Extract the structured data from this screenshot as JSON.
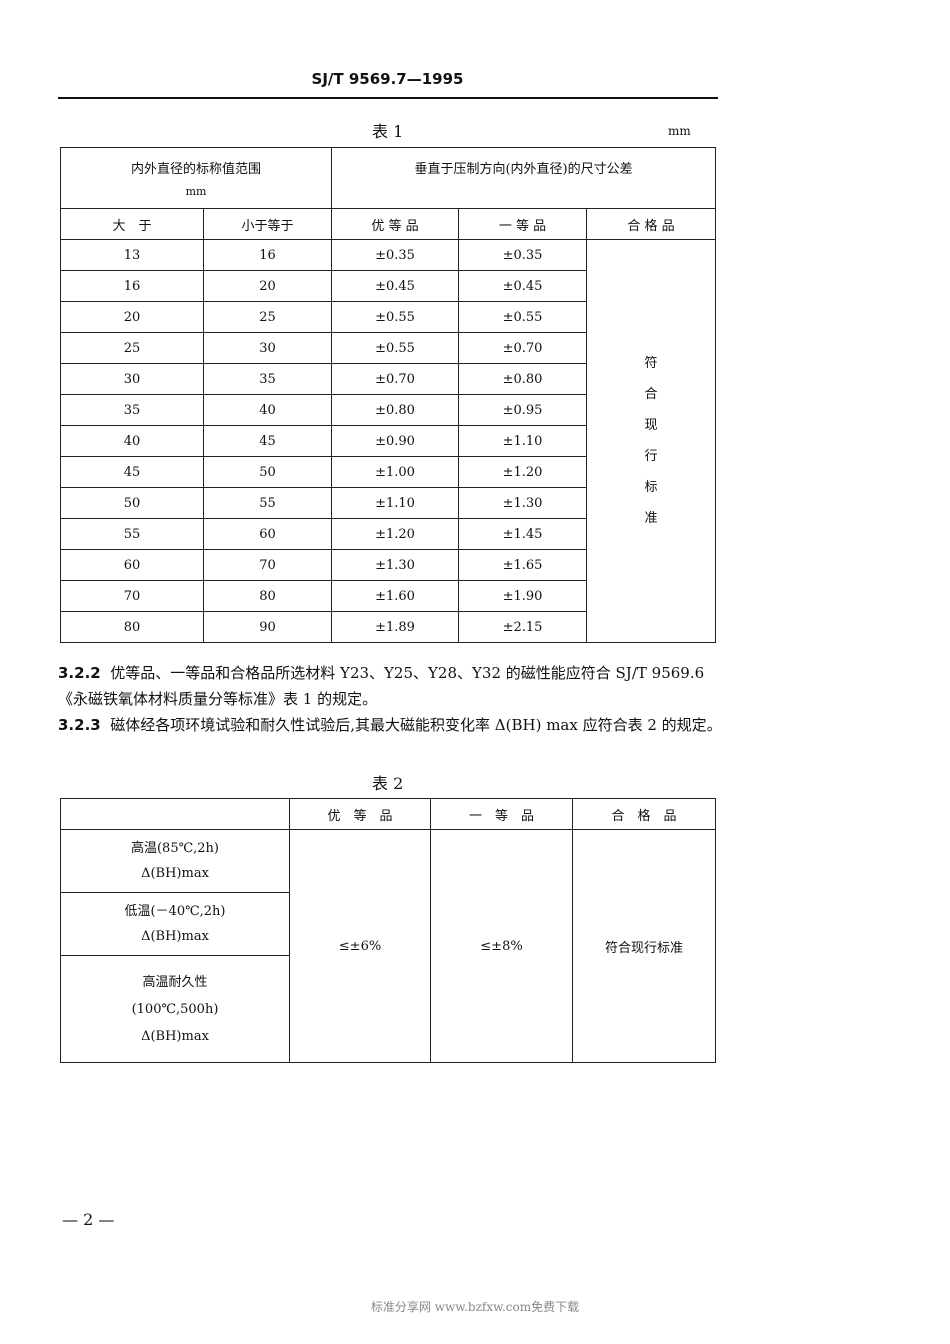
{
  "header": {
    "standard_no": "SJ/T 9569.7—1995"
  },
  "table1": {
    "caption": "表 1",
    "unit": "mm",
    "head_range": "内外直径的标称值范围",
    "head_range_unit": "mm",
    "head_tol": "垂直于压制方向(内外直径)的尺寸公差",
    "sub": [
      "大　于",
      "小于等于",
      "优 等 品",
      "一 等 品",
      "合 格 品"
    ],
    "rows": [
      [
        "13",
        "16",
        "±0.35",
        "±0.35"
      ],
      [
        "16",
        "20",
        "±0.45",
        "±0.45"
      ],
      [
        "20",
        "25",
        "±0.55",
        "±0.55"
      ],
      [
        "25",
        "30",
        "±0.55",
        "±0.70"
      ],
      [
        "30",
        "35",
        "±0.70",
        "±0.80"
      ],
      [
        "35",
        "40",
        "±0.80",
        "±0.95"
      ],
      [
        "40",
        "45",
        "±0.90",
        "±1.10"
      ],
      [
        "45",
        "50",
        "±1.00",
        "±1.20"
      ],
      [
        "50",
        "55",
        "±1.10",
        "±1.30"
      ],
      [
        "55",
        "60",
        "±1.20",
        "±1.45"
      ],
      [
        "60",
        "70",
        "±1.30",
        "±1.65"
      ],
      [
        "70",
        "80",
        "±1.60",
        "±1.90"
      ],
      [
        "80",
        "90",
        "±1.89",
        "±2.15"
      ]
    ],
    "qualified": [
      "符",
      "合",
      "现",
      "行",
      "标",
      "准"
    ]
  },
  "paragraphs": [
    {
      "num": "3.2.2",
      "text": "优等品、一等品和合格品所选材料 Y23、Y25、Y28、Y32 的磁性能应符合 SJ/T 9569.6《永磁铁氧体材料质量分等标准》表 1 的规定。"
    },
    {
      "num": "3.2.3",
      "text": "磁体经各项环境试验和耐久性试验后,其最大磁能积变化率 Δ(BH) max 应符合表 2 的规定。"
    }
  ],
  "table2": {
    "caption": "表 2",
    "head": [
      "",
      "优　等　品",
      "一　等　品",
      "合　格　品"
    ],
    "rows": [
      [
        "高温(85℃,2h)",
        "Δ(BH)max"
      ],
      [
        "低温(－40℃,2h)",
        "Δ(BH)max"
      ],
      [
        "高温耐久性",
        "(100℃,500h)",
        "Δ(BH)max"
      ]
    ],
    "superior": "≤±6%",
    "first": "≤±8%",
    "qualified": "符合现行标准"
  },
  "footer": {
    "page": "— 2 —",
    "watermark": "标准分享网 www.bzfxw.com免费下载"
  }
}
